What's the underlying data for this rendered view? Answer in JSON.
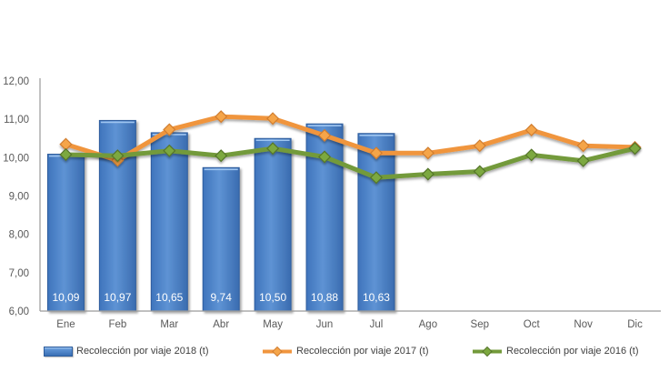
{
  "chart_data": {
    "type": "bar",
    "subtype": "combo-bar-line",
    "title": "",
    "xlabel": "",
    "ylabel": "",
    "ylim": [
      6,
      12
    ],
    "ytick_values": [
      12,
      11,
      10,
      9,
      8,
      7,
      6
    ],
    "ytick_labels": [
      "12,00",
      "11,00",
      "10,00",
      "9,00",
      "8,00",
      "7,00",
      "6,00"
    ],
    "grid": false,
    "legend_position": "bottom",
    "categories": [
      "Ene",
      "Feb",
      "Mar",
      "Abr",
      "May",
      "Jun",
      "Jul",
      "Ago",
      "Sep",
      "Oct",
      "Nov",
      "Dic"
    ],
    "series": [
      {
        "name": "Recolección por viaje 2018 (t)",
        "type": "bar",
        "color": "#4a80c8",
        "border_color": "#2d5c9c",
        "values": [
          10.09,
          10.97,
          10.65,
          9.74,
          10.5,
          10.88,
          10.63,
          null,
          null,
          null,
          null,
          null
        ],
        "data_labels": [
          "10,09",
          "10,97",
          "10,65",
          "9,74",
          "10,50",
          "10,88",
          "10,63"
        ],
        "data_label_color": "#ffffff"
      },
      {
        "name": "Recolección por viaje 2017 (t)",
        "type": "line",
        "color": "#f0953e",
        "marker_fill": "#f5a54a",
        "marker_stroke": "#d17d2f",
        "values": [
          10.35,
          9.93,
          10.73,
          11.07,
          11.02,
          10.58,
          10.12,
          10.12,
          10.31,
          10.72,
          10.31,
          10.27
        ]
      },
      {
        "name": "Recolección por viaje 2016 (t)",
        "type": "line",
        "color": "#739a3a",
        "marker_fill": "#7ca83f",
        "marker_stroke": "#55752a",
        "values": [
          10.08,
          10.05,
          10.18,
          10.05,
          10.24,
          10.02,
          9.48,
          9.57,
          9.64,
          10.07,
          9.92,
          10.24
        ]
      }
    ],
    "axis_color": "#9a9a9a",
    "tick_text_color": "#595959"
  }
}
